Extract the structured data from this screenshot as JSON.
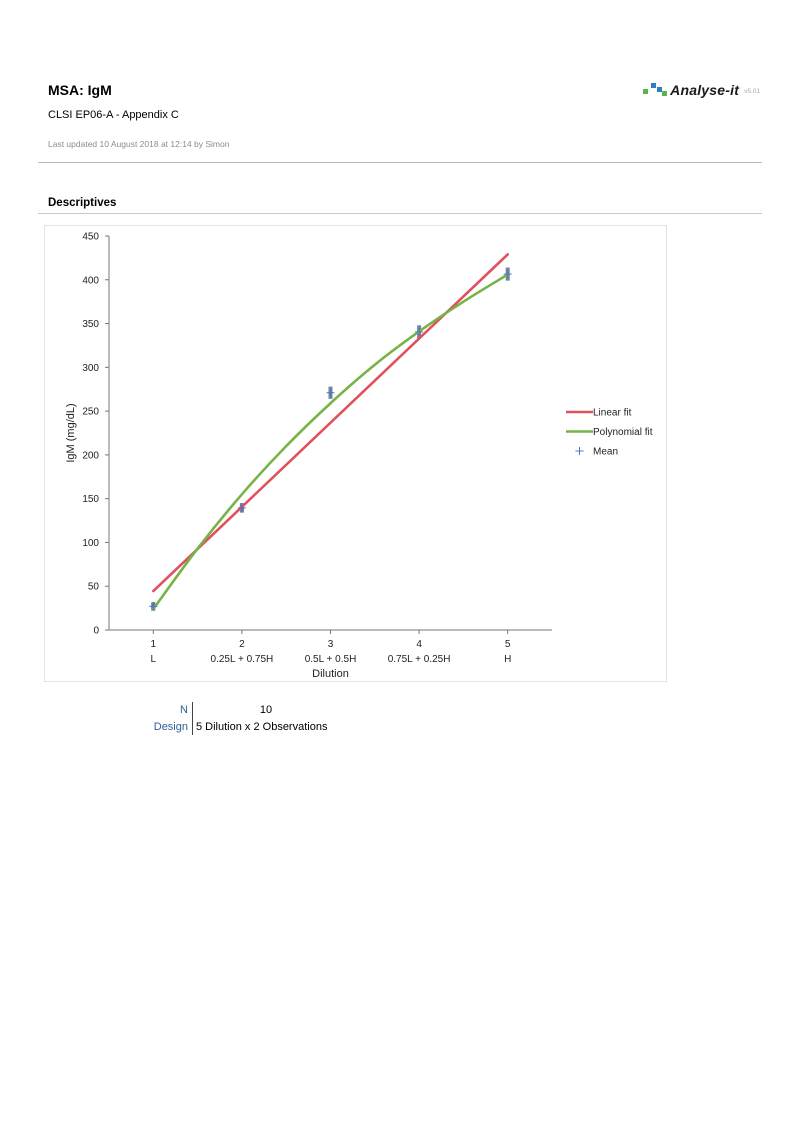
{
  "header": {
    "title": "MSA: IgM",
    "subtitle": "CLSI EP06-A - Appendix C",
    "updated": "Last updated 10 August 2018 at 12:14 by Simon"
  },
  "logo": {
    "text": "Analyse-it",
    "version": "v5.01"
  },
  "section": {
    "title": "Descriptives"
  },
  "chart_data": {
    "type": "scatter",
    "ylabel": "IgM (mg/dL)",
    "xlabel": "Dilution",
    "ylim": [
      0,
      450
    ],
    "yticks": [
      0,
      50,
      100,
      150,
      200,
      250,
      300,
      350,
      400,
      450
    ],
    "xlim": [
      0.5,
      5.5
    ],
    "x_ticks": [
      {
        "value": 1,
        "number": "1",
        "label": "L"
      },
      {
        "value": 2,
        "number": "2",
        "label": "0.25L + 0.75H"
      },
      {
        "value": 3,
        "number": "3",
        "label": "0.5L + 0.5H"
      },
      {
        "value": 4,
        "number": "4",
        "label": "0.75L + 0.25H"
      },
      {
        "value": 5,
        "number": "5",
        "label": "H"
      }
    ],
    "observations": [
      {
        "x": 1,
        "y": 26
      },
      {
        "x": 1,
        "y": 28
      },
      {
        "x": 2,
        "y": 138
      },
      {
        "x": 2,
        "y": 141
      },
      {
        "x": 3,
        "y": 268
      },
      {
        "x": 3,
        "y": 274
      },
      {
        "x": 4,
        "y": 337
      },
      {
        "x": 4,
        "y": 344
      },
      {
        "x": 5,
        "y": 403
      },
      {
        "x": 5,
        "y": 410
      }
    ],
    "means": [
      {
        "x": 1,
        "y": 27
      },
      {
        "x": 2,
        "y": 139.5
      },
      {
        "x": 3,
        "y": 271
      },
      {
        "x": 4,
        "y": 340.5
      },
      {
        "x": 5,
        "y": 406.5
      }
    ],
    "series": [
      {
        "name": "Linear fit",
        "color": "#e0525b",
        "x": [
          1,
          5
        ],
        "y": [
          44.5,
          429
        ]
      },
      {
        "name": "Polynomial fit",
        "color": "#77b347",
        "x": [
          1,
          1.5,
          2,
          2.5,
          3,
          3.5,
          4,
          4.5,
          5
        ],
        "y": [
          24,
          93,
          155,
          210,
          259,
          303,
          341,
          375,
          406
        ]
      }
    ],
    "legend": {
      "position": "right",
      "mean_label": "Mean",
      "mean_color": "#4a78c2"
    },
    "grid": false
  },
  "stats": {
    "n_label": "N",
    "n_value": "10",
    "design_label": "Design",
    "design_value": "5 Dilution x 2 Observations"
  },
  "colors": {
    "accent_blue": "#2f5f95",
    "logo_green": "#5bb450",
    "logo_blue": "#2b7fc2"
  }
}
